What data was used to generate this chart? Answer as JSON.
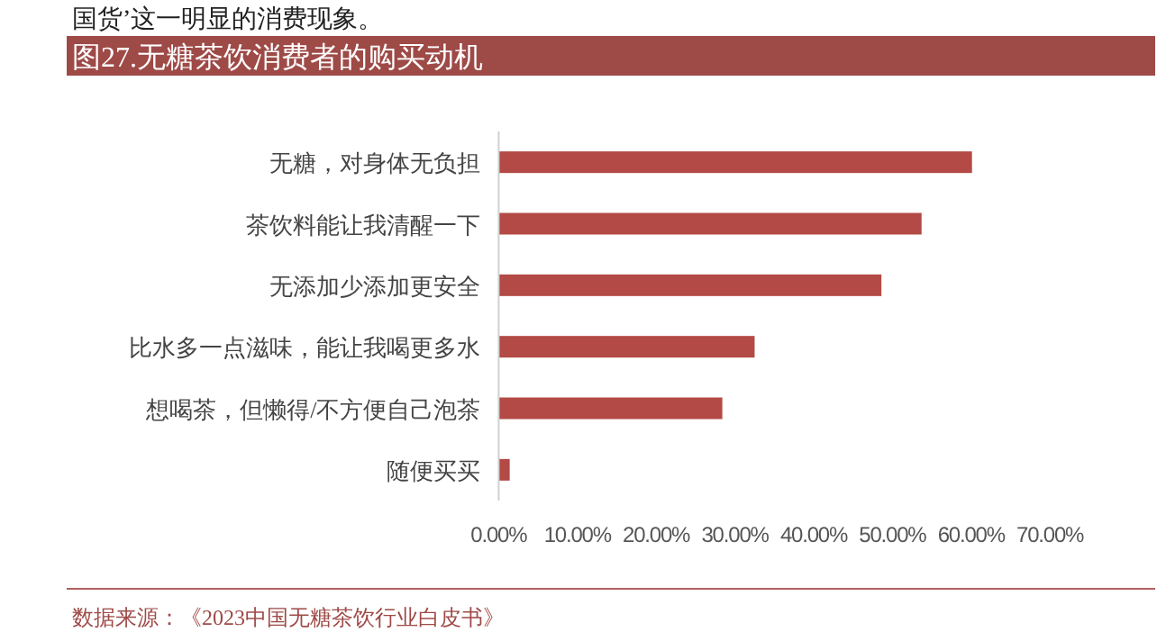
{
  "chart_data": {
    "type": "bar",
    "orientation": "horizontal",
    "title": "图27.无糖茶饮消费者的购买动机",
    "categories": [
      "无糖，对身体无负担",
      "茶饮料能让我清醒一下",
      "无添加少添加更安全",
      "比水多一点滋味，能让我喝更多水",
      "想喝茶，但懒得/不方便自己泡茶",
      "随便买买"
    ],
    "values": [
      60.1,
      53.7,
      48.6,
      32.5,
      28.4,
      1.4
    ],
    "color": "#b34a45",
    "xlim": [
      0,
      70
    ],
    "xticks": [
      {
        "value": 0,
        "label": "0.00%"
      },
      {
        "value": 10,
        "label": "10.00%"
      },
      {
        "value": 20,
        "label": "20.00%"
      },
      {
        "value": 30,
        "label": "30.00%"
      },
      {
        "value": 40,
        "label": "40.00%"
      },
      {
        "value": 50,
        "label": "50.00%"
      },
      {
        "value": 60,
        "label": "60.00%"
      },
      {
        "value": 70,
        "label": "70.00%"
      }
    ],
    "grid": false,
    "annotations": [
      "国货’这一明显的消费现象。",
      "数据来源：《2023中国无糖茶饮行业白皮书》"
    ]
  }
}
